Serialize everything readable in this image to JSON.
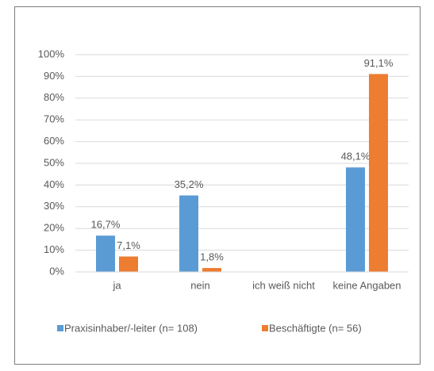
{
  "chart_data": {
    "type": "bar",
    "categories": [
      "ja",
      "nein",
      "ich weiß nicht",
      "keine Angaben"
    ],
    "series": [
      {
        "name": "Praxisinhaber/-leiter (n= 108)",
        "color": "#5b9bd5",
        "values": [
          16.7,
          35.2,
          null,
          48.1
        ],
        "value_labels": [
          "16,7%",
          "35,2%",
          null,
          "48,1%"
        ]
      },
      {
        "name": "Beschäftigte (n= 56)",
        "color": "#ed7d31",
        "values": [
          7.1,
          1.8,
          null,
          91.1
        ],
        "value_labels": [
          "7,1%",
          "1,8%",
          null,
          "91,1%"
        ]
      }
    ],
    "ylim": [
      0,
      100
    ],
    "yticks": [
      {
        "value": 0,
        "label": "0%"
      },
      {
        "value": 10,
        "label": "10%"
      },
      {
        "value": 20,
        "label": "20%"
      },
      {
        "value": 30,
        "label": "30%"
      },
      {
        "value": 40,
        "label": "40%"
      },
      {
        "value": 50,
        "label": "50%"
      },
      {
        "value": 60,
        "label": "60%"
      },
      {
        "value": 70,
        "label": "70%"
      },
      {
        "value": 80,
        "label": "80%"
      },
      {
        "value": 90,
        "label": "90%"
      },
      {
        "value": 100,
        "label": "100%"
      }
    ],
    "grid": true,
    "legend": "bottom"
  }
}
